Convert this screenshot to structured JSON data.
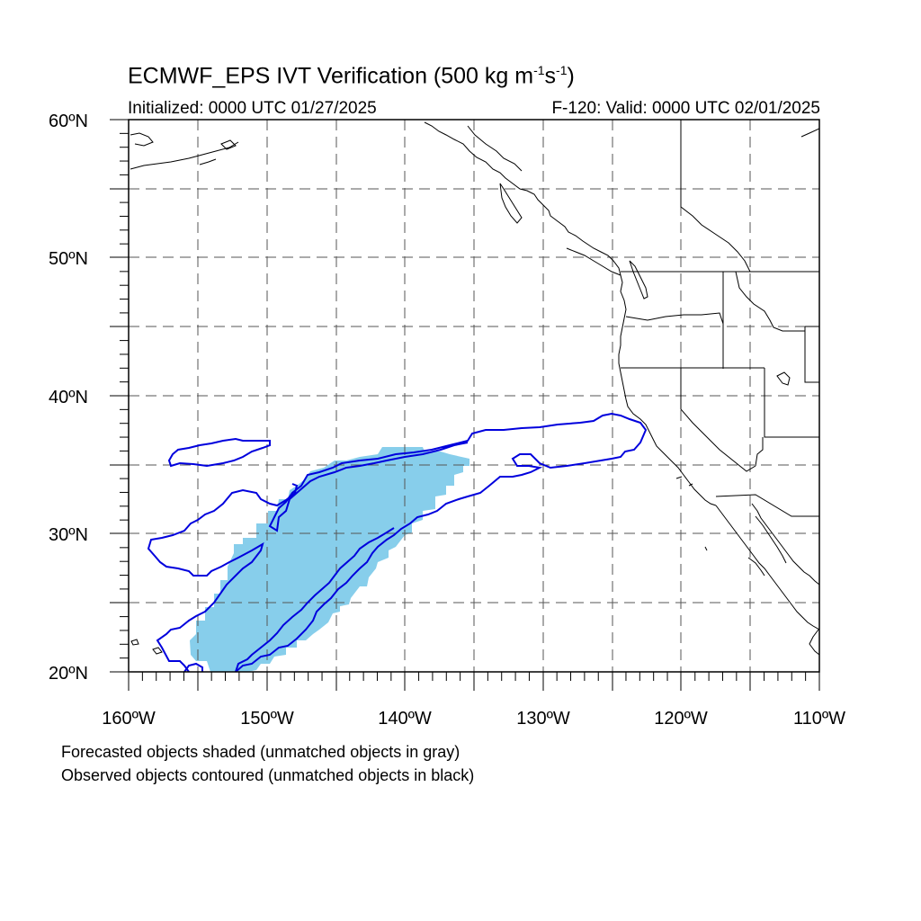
{
  "title": {
    "main": "ECMWF_EPS IVT Verification (500 kg m",
    "sup1": "-1",
    "mid": "s",
    "sup2": "-1",
    "end": ")"
  },
  "subtitle_left": "Initialized: 0000 UTC 01/27/2025",
  "subtitle_right": "F-120: Valid: 0000 UTC 02/01/2025",
  "lat_labels": [
    "20ºN",
    "30ºN",
    "40ºN",
    "50ºN",
    "60ºN"
  ],
  "lon_labels": [
    "160ºW",
    "150ºW",
    "140ºW",
    "130ºW",
    "120ºW",
    "110ºW"
  ],
  "footnotes": {
    "line1": "Forecasted objects shaded (unmatched objects in gray)",
    "line2": "Observed objects contoured (unmatched objects in black)"
  },
  "map_extent": {
    "lon_min": -160,
    "lon_max": -110,
    "lat_min": 20,
    "lat_max": 60
  },
  "colors": {
    "forecast_fill": "#87CEEB",
    "observed_contour": "#0000DD",
    "coastline": "#000000",
    "grid": "#444444"
  }
}
